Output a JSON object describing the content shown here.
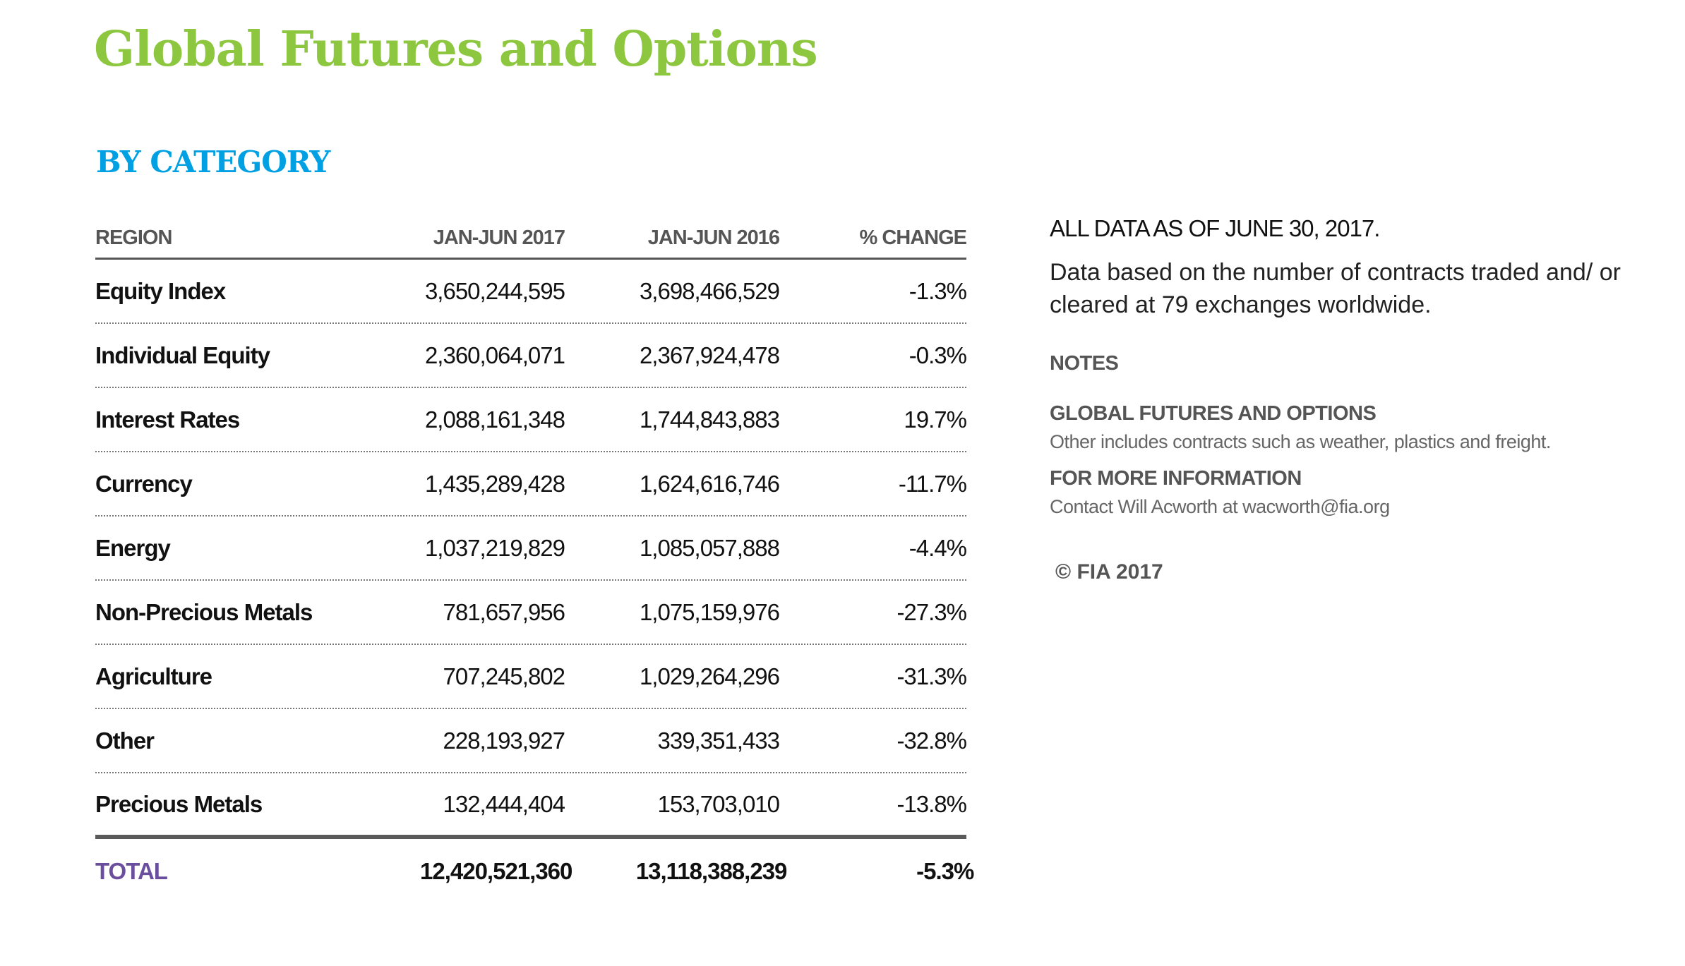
{
  "title": "Global Futures and Options",
  "subtitle": "BY CATEGORY",
  "table": {
    "headers": [
      "REGION",
      "JAN-JUN 2017",
      "JAN-JUN 2016",
      "% CHANGE"
    ],
    "rows": [
      [
        "Equity Index",
        "3,650,244,595",
        "3,698,466,529",
        "-1.3%"
      ],
      [
        "Individual Equity",
        "2,360,064,071",
        "2,367,924,478",
        "-0.3%"
      ],
      [
        "Interest Rates",
        "2,088,161,348",
        "1,744,843,883",
        "19.7%"
      ],
      [
        "Currency",
        "1,435,289,428",
        "1,624,616,746",
        "-11.7%"
      ],
      [
        "Energy",
        "1,037,219,829",
        "1,085,057,888",
        "-4.4%"
      ],
      [
        "Non-Precious Metals",
        "781,657,956",
        "1,075,159,976",
        "-27.3%"
      ],
      [
        "Agriculture",
        "707,245,802",
        "1,029,264,296",
        "-31.3%"
      ],
      [
        "Other",
        "228,193,927",
        "339,351,433",
        "-32.8%"
      ],
      [
        "Precious Metals",
        "132,444,404",
        "153,703,010",
        "-13.8%"
      ]
    ],
    "total": [
      "TOTAL",
      "12,420,521,360",
      "13,118,388,239",
      "-5.3%"
    ]
  },
  "side": {
    "as_of": "ALL DATA AS OF JUNE 30, 2017.",
    "description": "Data based on the number of contracts traded and/ or cleared at 79 exchanges worldwide.",
    "notes_label": "NOTES",
    "note1_heading": "GLOBAL FUTURES AND OPTIONS",
    "note1_text": "Other includes contracts such as weather, plastics and freight.",
    "note2_heading": "FOR MORE INFORMATION",
    "note2_text": "Contact Will Acworth at wacworth@fia.org",
    "copyright": "© FIA 2017"
  },
  "colors": {
    "title": "#8dc63f",
    "subtitle": "#00a0e3",
    "total": "#6b4f9e"
  }
}
